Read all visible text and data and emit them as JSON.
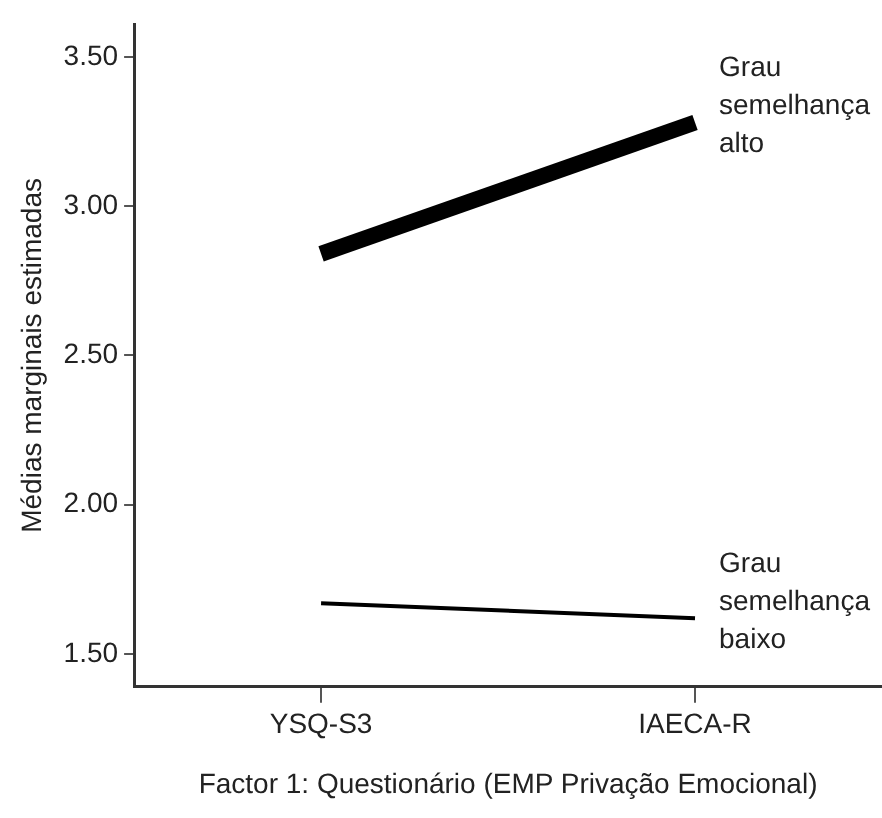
{
  "chart_data": {
    "type": "line",
    "xlabel": "Factor 1: Questionário (EMP Privação Emocional)",
    "ylabel": "Médias marginais estimadas",
    "categories": [
      "YSQ-S3",
      "IAECA-R"
    ],
    "series": [
      {
        "name": "Grau semelhança alto",
        "color": "#000000",
        "values": [
          2.84,
          3.28
        ]
      },
      {
        "name": "Grau semelhança baixo",
        "color": "#000000",
        "values": [
          1.67,
          1.62
        ]
      }
    ],
    "ylim": [
      1.39,
      3.61
    ],
    "yticks": [
      {
        "value": 1.5,
        "label": "1.50"
      },
      {
        "value": 2,
        "label": "2.00"
      },
      {
        "value": 2.5,
        "label": "2.50"
      },
      {
        "value": 3,
        "label": "3.00"
      },
      {
        "value": 3.5,
        "label": "3.50"
      }
    ],
    "grid": false,
    "legend": false,
    "marker": "none",
    "line_style": "solid"
  }
}
